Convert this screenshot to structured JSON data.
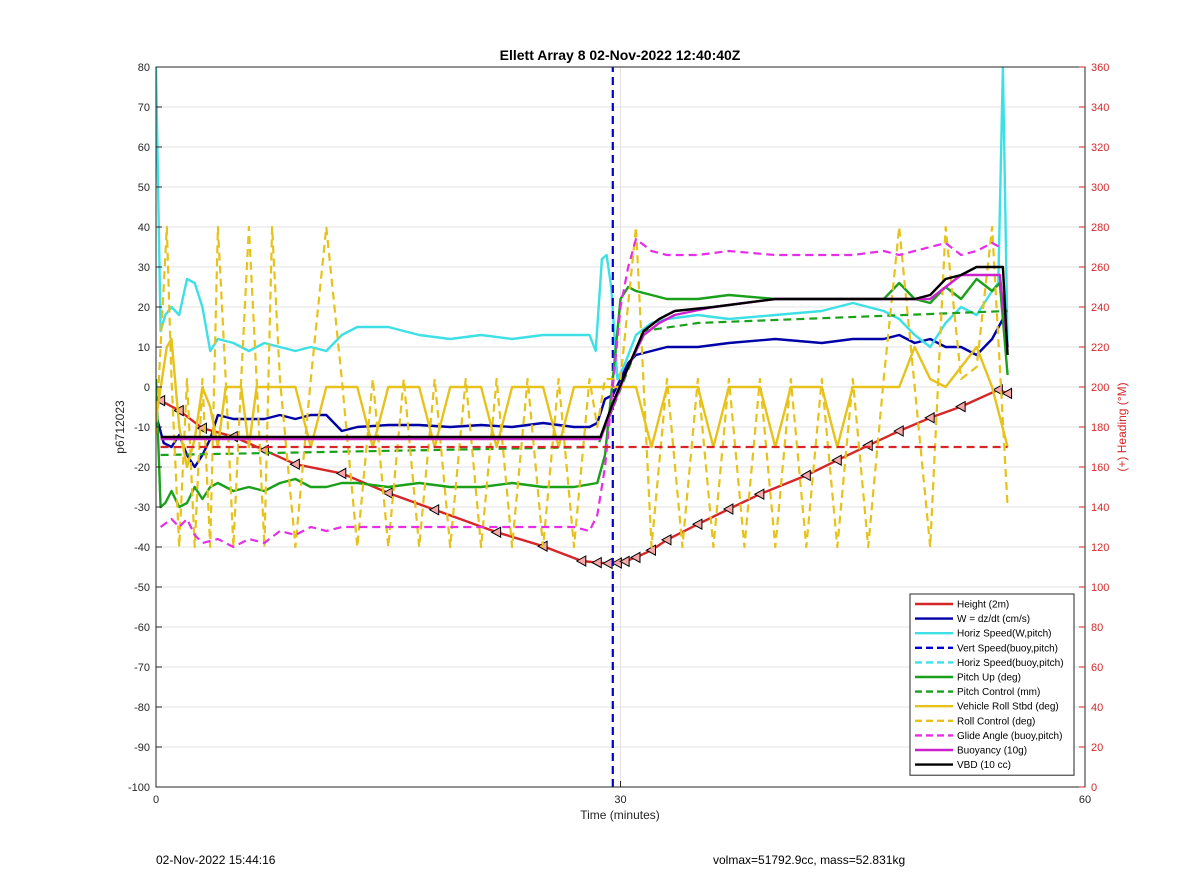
{
  "chart_data": {
    "type": "line",
    "title": "Ellett Array 8 02-Nov-2022 12:40:40Z",
    "xlabel": "Time (minutes)",
    "ylabel": "p6712023",
    "y2label": "(+) Heading (°M)",
    "xlim": [
      0,
      60
    ],
    "ylim": [
      -100,
      80
    ],
    "y2lim": [
      0,
      360
    ],
    "xticks": [
      "0",
      "30",
      "60"
    ],
    "yticks": [
      "-100",
      "-90",
      "-80",
      "-70",
      "-60",
      "-50",
      "-40",
      "-30",
      "-20",
      "-10",
      "0",
      "10",
      "20",
      "30",
      "40",
      "50",
      "60",
      "70",
      "80"
    ],
    "y2ticks": [
      "0",
      "20",
      "40",
      "60",
      "80",
      "100",
      "120",
      "140",
      "160",
      "180",
      "200",
      "220",
      "240",
      "260",
      "280",
      "300",
      "320",
      "340",
      "360"
    ],
    "grid": true,
    "legend_position": "bottom-right",
    "series": [
      {
        "name": "Height (2m)",
        "color": "#d62728",
        "style": "solid",
        "marker": "triangle-left",
        "x": [
          0.3,
          1.5,
          3,
          5,
          7,
          9,
          12,
          15,
          18,
          22,
          25,
          27.5,
          28.5,
          29.2,
          29.8,
          30.3,
          31,
          32,
          33,
          35,
          37,
          39,
          42,
          44,
          46,
          48,
          50,
          52,
          54.4,
          55
        ],
        "y": [
          -3.4,
          -5.9,
          -10.3,
          -12.4,
          -15.8,
          -19.3,
          -21.6,
          -26.5,
          -30.7,
          -36.3,
          -39.8,
          -43.5,
          -43.9,
          -44.1,
          -44.0,
          -43.6,
          -42.6,
          -40.8,
          -38.2,
          -34.3,
          -30.5,
          -26.8,
          -22.1,
          -18.3,
          -14.6,
          -11.0,
          -7.7,
          -4.9,
          -0.7,
          -1.6
        ]
      },
      {
        "name": "W = dz/dt (cm/s)",
        "color": "#0000a8",
        "style": "solid",
        "x": [
          0,
          0.5,
          1,
          1.5,
          2,
          2.5,
          3,
          3.5,
          4,
          5,
          6,
          7,
          8,
          9,
          10,
          11,
          12,
          13,
          15,
          17,
          19,
          21,
          23,
          25,
          26,
          27,
          28,
          28.5,
          29,
          29.5,
          30,
          30.5,
          31,
          32,
          33,
          35,
          37,
          40,
          43,
          45,
          47,
          48,
          49,
          50,
          51,
          52,
          53,
          54,
          54.7,
          55
        ],
        "y": [
          -7,
          -14,
          -15,
          -12,
          -17,
          -20,
          -17,
          -13,
          -7,
          -8,
          -8,
          -8,
          -7,
          -8,
          -7,
          -7,
          -11,
          -10,
          -9.5,
          -9.5,
          -10,
          -9.5,
          -10,
          -9,
          -9.5,
          -10,
          -10,
          -9,
          -3,
          -2,
          2,
          6,
          8,
          9,
          10,
          10,
          11,
          12,
          11,
          12,
          12,
          13,
          11,
          12,
          10,
          10,
          8,
          12,
          17,
          10
        ]
      },
      {
        "name": "Horiz Speed(W,pitch)",
        "color": "#3ee0e6",
        "style": "solid",
        "x": [
          0,
          0.3,
          0.6,
          1,
          1.5,
          2,
          2.5,
          3,
          3.5,
          4,
          5,
          6,
          7,
          8,
          9,
          10,
          11,
          12,
          13,
          15,
          17,
          19,
          21,
          23,
          25,
          27,
          28,
          28.4,
          28.8,
          29.1,
          29.4,
          29.8,
          30.2,
          31,
          32,
          33,
          35,
          37,
          40,
          43,
          45,
          47,
          48,
          49,
          50,
          51,
          52,
          53,
          54,
          54.4,
          54.7,
          55
        ],
        "y": [
          80,
          14,
          18,
          20,
          18,
          27,
          26,
          20,
          9,
          12,
          11,
          9,
          11,
          10,
          9,
          10,
          9,
          13,
          15,
          15,
          13,
          12,
          13,
          12,
          13,
          13,
          13,
          9,
          32,
          33,
          25,
          2,
          5,
          13,
          16,
          17,
          18,
          17,
          18,
          19,
          21,
          19,
          17,
          13,
          10,
          16,
          20,
          18,
          24,
          26,
          80,
          10
        ]
      },
      {
        "name": "Vert Speed(buoy,pitch)",
        "color": "#0000cc",
        "style": "dashed",
        "x": [
          29.5,
          29.5
        ],
        "y": [
          -100,
          80
        ]
      },
      {
        "name": "Horiz Speed(buoy,pitch)",
        "color": "#3ee0e6",
        "style": "dashed",
        "x": [],
        "y": []
      },
      {
        "name": "Pitch Up (deg)",
        "color": "#1aa01a",
        "style": "solid",
        "x": [
          0,
          0.3,
          0.6,
          1,
          1.5,
          2,
          2.5,
          3,
          3.5,
          4,
          5,
          6,
          7,
          8,
          9,
          10,
          11,
          12,
          13,
          15,
          17,
          19,
          21,
          23,
          25,
          27,
          28.5,
          29,
          29.5,
          30,
          30.5,
          31,
          32,
          33,
          35,
          37,
          40,
          43,
          45,
          47,
          48,
          49,
          50,
          51,
          52,
          53,
          54,
          54.5,
          55
        ],
        "y": [
          2,
          -30,
          -29,
          -26,
          -30,
          -29,
          -25,
          -28,
          -25,
          -24,
          -26,
          -25,
          -26,
          -24,
          -23,
          -25,
          -25,
          -24,
          -24,
          -25,
          -24,
          -25,
          -25,
          -24,
          -25,
          -25,
          -24,
          -17,
          2,
          22,
          25,
          24,
          23,
          22,
          22,
          23,
          22,
          22,
          22,
          22,
          26,
          22,
          21,
          25,
          22,
          27,
          24,
          26,
          3
        ]
      },
      {
        "name": "Pitch Control (mm)",
        "color": "#1aa01a",
        "style": "dashed",
        "x": [
          0.3,
          28.5,
          31.5,
          35,
          55
        ],
        "y": [
          -17,
          -15,
          14,
          16,
          19
        ]
      },
      {
        "name": "Vehicle Roll Stbd (deg)",
        "color": "#e6c21a",
        "style": "solid",
        "x": [
          0,
          0.7,
          1,
          1.5,
          2,
          2.5,
          3,
          3.5,
          4,
          4.5,
          5,
          5.5,
          6,
          6.5,
          7,
          7.5,
          8,
          9,
          10,
          11,
          12,
          13,
          14,
          15,
          16,
          17,
          18,
          19,
          20,
          21,
          22,
          23,
          24,
          25,
          26,
          27,
          28,
          28.5,
          29,
          29.5,
          30,
          31,
          32,
          33,
          34,
          35,
          36,
          37,
          38,
          39,
          40,
          41,
          42,
          43,
          44,
          45,
          46,
          47,
          48,
          49,
          50,
          51,
          52,
          53,
          54,
          55
        ],
        "y": [
          -8,
          10,
          12,
          -10,
          -20,
          -13,
          0,
          -5,
          -15,
          0,
          0,
          0,
          -15,
          0,
          0,
          0,
          0,
          0,
          -15,
          0,
          0,
          0,
          -15,
          0,
          0,
          0,
          -15,
          0,
          0,
          0,
          -15,
          0,
          0,
          0,
          -15,
          0,
          0,
          0,
          0,
          0,
          0,
          0,
          -15,
          0,
          0,
          0,
          -15,
          0,
          0,
          0,
          -15,
          0,
          0,
          0,
          -15,
          0,
          0,
          0,
          0,
          10,
          2,
          0,
          5,
          10,
          0,
          -15
        ]
      },
      {
        "name": "Roll Control (deg)",
        "color": "#e6c21a",
        "style": "dashed",
        "x": [
          0,
          0.7,
          1,
          1.5,
          2,
          2.5,
          3,
          3.5,
          4,
          4.5,
          5,
          5.5,
          6,
          6.5,
          7,
          7.5,
          8,
          9,
          10,
          11,
          12,
          13,
          14,
          15,
          16,
          17,
          18,
          19,
          20,
          21,
          22,
          23,
          24,
          25,
          26,
          27,
          28,
          28.5,
          29,
          29.5,
          30,
          31,
          32,
          33,
          34,
          35,
          36,
          37,
          38,
          39,
          40,
          41,
          42,
          43,
          44,
          45,
          46,
          47,
          48,
          49,
          50,
          51,
          52,
          53,
          54,
          55
        ],
        "y": [
          -12,
          40,
          2,
          -40,
          2,
          -40,
          2,
          -40,
          40,
          2,
          -40,
          2,
          40,
          2,
          -40,
          40,
          2,
          -40,
          2,
          40,
          2,
          -40,
          2,
          -40,
          2,
          -40,
          2,
          -40,
          2,
          -40,
          2,
          -40,
          2,
          -40,
          2,
          -40,
          2,
          -10,
          2,
          2,
          2,
          40,
          -40,
          2,
          -40,
          2,
          -40,
          2,
          -40,
          2,
          -40,
          2,
          -40,
          2,
          -40,
          2,
          -40,
          2,
          40,
          0,
          -40,
          40,
          2,
          5,
          40,
          -30
        ]
      },
      {
        "name": "Glide Angle (buoy,pitch)",
        "color": "#e62ee6",
        "style": "dashed",
        "x": [
          0.3,
          1,
          1.5,
          2,
          2.5,
          3,
          4,
          5,
          6,
          7,
          8,
          9,
          10,
          11,
          12,
          13,
          15,
          17,
          19,
          21,
          23,
          25,
          27,
          28,
          28.5,
          29,
          29.5,
          30,
          30.5,
          31,
          32,
          33,
          35,
          37,
          40,
          43,
          45,
          47,
          48,
          49,
          50,
          51,
          52,
          53,
          54,
          54.5
        ],
        "y": [
          -35,
          -33,
          -35,
          -33,
          -37,
          -39,
          -38,
          -40,
          -38,
          -39,
          -36,
          -37,
          -35,
          -36,
          -35,
          -35,
          -35,
          -35,
          -35,
          -35,
          -35,
          -35,
          -35,
          -36,
          -32,
          -20,
          0,
          20,
          30,
          37,
          34,
          33,
          33,
          34,
          33,
          33,
          33,
          34,
          33,
          34,
          35,
          36,
          33,
          34,
          36,
          35
        ]
      },
      {
        "name": "Buoyancy (10g)",
        "color": "#cc22cc",
        "style": "solid",
        "x": [
          0.3,
          28.7,
          29.5,
          30.5,
          31.5,
          32.5,
          33.5,
          36,
          40,
          45,
          50,
          51,
          52,
          53,
          54.5,
          55
        ],
        "y": [
          -13,
          -13,
          -5,
          5,
          13,
          16,
          18,
          20,
          22,
          22,
          22,
          25,
          28,
          28,
          28,
          10
        ]
      },
      {
        "name": "VBD (10 cc)",
        "color": "#000000",
        "style": "solid",
        "x": [
          0.3,
          28.7,
          29.5,
          30.5,
          31.5,
          32.5,
          33.5,
          36,
          40,
          45,
          48,
          49,
          50,
          51,
          52,
          53,
          54.7,
          55
        ],
        "y": [
          -12.5,
          -12.5,
          -4,
          5,
          14,
          17,
          19,
          20,
          22,
          22,
          22,
          22,
          23,
          27,
          28,
          30,
          30,
          8
        ]
      },
      {
        "name": "Heading",
        "color": "#d62728",
        "style": "dashed",
        "axis": "y2",
        "x": [
          0.3,
          55
        ],
        "y": [
          170,
          170
        ]
      }
    ]
  },
  "footer": {
    "left": "02-Nov-2022 15:44:16",
    "right": "volmax=51792.9cc, mass=52.831kg"
  }
}
